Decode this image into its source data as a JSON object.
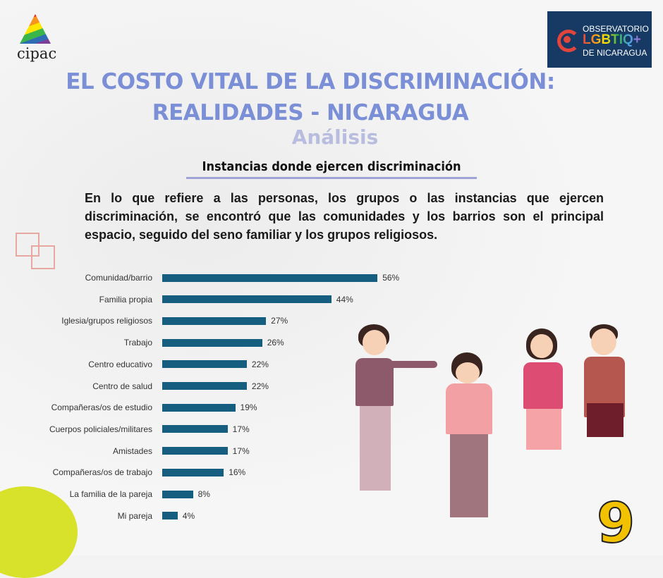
{
  "logos": {
    "left": "cipac",
    "right": [
      "OBSERVATORIO",
      "LGBTIQ+",
      "DE NICARAGUA"
    ]
  },
  "header": {
    "title_line1": "EL COSTO VITAL DE LA DISCRIMINACIÓN:",
    "title_line2": "REALIDADES - NICARAGUA",
    "subtitle": "Análisis"
  },
  "section_heading": "Instancias donde ejercen discriminación",
  "intro": "En lo que refiere a las personas, los grupos o las instancias que ejercen discriminación, se encontró que las comunidades y los barrios son el principal espacio, seguido del seno familiar y los grupos religiosos.",
  "page_number": "9",
  "chart_data": {
    "type": "bar",
    "orientation": "horizontal",
    "categories": [
      "Comunidad/barrio",
      "Familia propia",
      "Iglesia/grupos religiosos",
      "Trabajo",
      "Centro educativo",
      "Centro de salud",
      "Compañeras/os de estudio",
      "Cuerpos policiales/militares",
      "Amistades",
      "Compañeras/os de trabajo",
      "La familia de la pareja",
      "Mi pareja"
    ],
    "values": [
      56,
      44,
      27,
      26,
      22,
      22,
      19,
      17,
      17,
      16,
      8,
      4
    ],
    "labels": [
      "56%",
      "44%",
      "27%",
      "26%",
      "22%",
      "22%",
      "19%",
      "17%",
      "17%",
      "16%",
      "8%",
      "4%"
    ],
    "unit": "%",
    "xlim": [
      0,
      60
    ],
    "grid": false,
    "bar_color": "#155e80"
  },
  "colors": {
    "title": "#7b8fd6",
    "subtitle": "#b8bde0",
    "logo_bg": "#163a63",
    "page_number": "#f2c100"
  }
}
